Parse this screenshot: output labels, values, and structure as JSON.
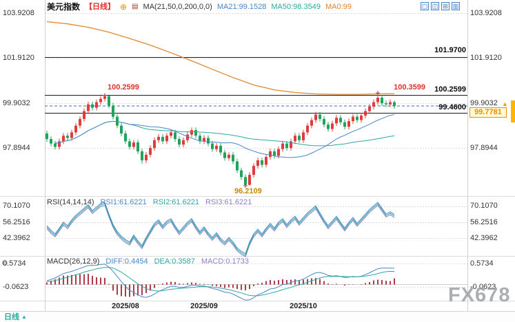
{
  "header": {
    "symbol": "美元指数",
    "period": "【日线】",
    "plus_icon": "⊕",
    "chart_icon": "▤",
    "ma_settings": "MA(21,50,0,200,0,0)",
    "ma21": "MA21:99.1528",
    "ma50": "MA50:98.3549",
    "ma0": "MA0:99"
  },
  "toolbar": {
    "icons": [
      {
        "glyph": "▢"
      },
      {
        "glyph": "◫"
      },
      {
        "glyph": "⊞"
      },
      {
        "glyph": "▥"
      }
    ]
  },
  "axes": {
    "price_left": [
      "103.9208",
      "101.9120",
      "99.9032",
      "97.8944"
    ],
    "price_right": [
      "103.9208",
      "101.9120",
      "99.9032",
      "97.8944"
    ],
    "rsi_ticks": [
      "70.1070",
      "56.2516",
      "42.3962"
    ],
    "macd_ticks": [
      "0.5734",
      "-0.0623"
    ],
    "time": [
      "2025/08",
      "2025/09",
      "2025/10"
    ]
  },
  "levels": {
    "line1": "101.9700",
    "line2": "100.2599",
    "line3": "99.4600",
    "swing_high": "100.2599",
    "recent_high": "100.3599",
    "swing_low": "96.2109",
    "last_price": "99.7781"
  },
  "rsi_header": {
    "title": "RSI(14,14,14)",
    "rsi1": "RSI1:61.6221",
    "rsi2": "RSI2:61.6221",
    "rsi3": "RSI3:61.6221"
  },
  "macd_header": {
    "title": "MACD(26,12,9)",
    "diff": "DIFF:0.4454",
    "dea": "DEA:0.3587",
    "macd": "MACD:0.1733"
  },
  "bottom": {
    "tab": "日线",
    "arrow": "▲"
  },
  "watermark": "FX678",
  "gear_icon": "⚙",
  "up_arrow": "▲",
  "colors": {
    "up": "#e13c3c",
    "down": "#22a35c",
    "ma21": "#4a86c8",
    "ma50": "#2ba8a0",
    "ma200": "#e0862e",
    "rsi": "#2ba8a0",
    "diff": "#4a86c8",
    "dea": "#2ba8a0",
    "hist": "#b03a4a",
    "dashed": "#3b6db0",
    "level": "#1a1a1a",
    "highlight": "#f08c00"
  },
  "chart_data": [
    {
      "type": "candlestick",
      "name": "美元指数 日线",
      "ylim": [
        95.9,
        104.3
      ],
      "y_ticks": [
        103.9208,
        101.912,
        99.9032,
        97.8944
      ],
      "h_lines": [
        101.97,
        100.2599,
        99.46
      ],
      "dashed_line": 99.7781,
      "x_labels": [
        {
          "index": 19,
          "label": "2025/08"
        },
        {
          "index": 38,
          "label": "2025/09"
        },
        {
          "index": 62,
          "label": "2025/10"
        }
      ],
      "annotations": [
        {
          "index": 14,
          "price": 100.2599,
          "label": "100.2599"
        },
        {
          "index": 80,
          "price": 100.3599,
          "label": "100.3599"
        },
        {
          "index": 48,
          "price": 96.2109,
          "label": "96.2109"
        }
      ],
      "ma200": [
        [
          0,
          103.55
        ],
        [
          5,
          103.45
        ],
        [
          10,
          103.3
        ],
        [
          15,
          103.08
        ],
        [
          20,
          102.8
        ],
        [
          25,
          102.5
        ],
        [
          30,
          102.16
        ],
        [
          35,
          101.8
        ],
        [
          40,
          101.42
        ],
        [
          45,
          101.05
        ],
        [
          50,
          100.72
        ],
        [
          55,
          100.5
        ],
        [
          60,
          100.38
        ],
        [
          65,
          100.32
        ],
        [
          70,
          100.3
        ],
        [
          75,
          100.3
        ],
        [
          80,
          100.32
        ],
        [
          84,
          100.33
        ]
      ],
      "candles": [
        [
          98.55,
          98.67,
          98.18,
          98.3
        ],
        [
          98.3,
          98.42,
          97.98,
          98.1
        ],
        [
          98.1,
          98.22,
          97.83,
          97.95
        ],
        [
          97.95,
          98.32,
          97.83,
          98.2
        ],
        [
          98.2,
          98.57,
          98.08,
          98.45
        ],
        [
          98.45,
          98.57,
          98.23,
          98.35
        ],
        [
          98.35,
          98.72,
          98.23,
          98.6
        ],
        [
          98.6,
          99.02,
          98.48,
          98.9
        ],
        [
          98.9,
          99.32,
          98.78,
          99.2
        ],
        [
          99.2,
          99.67,
          99.08,
          99.55
        ],
        [
          99.55,
          99.97,
          99.43,
          99.85
        ],
        [
          99.85,
          99.97,
          99.58,
          99.7
        ],
        [
          99.7,
          100.07,
          99.58,
          99.95
        ],
        [
          99.95,
          100.22,
          99.83,
          100.1
        ],
        [
          100.1,
          100.26,
          99.98,
          100.22
        ],
        [
          100.22,
          100.24,
          99.68,
          99.8
        ],
        [
          99.8,
          99.92,
          99.18,
          99.3
        ],
        [
          99.3,
          99.42,
          98.78,
          98.9
        ],
        [
          98.9,
          99.02,
          98.43,
          98.55
        ],
        [
          98.55,
          98.67,
          98.08,
          98.2
        ],
        [
          98.2,
          98.32,
          97.83,
          97.95
        ],
        [
          97.95,
          98.27,
          97.83,
          98.15
        ],
        [
          98.15,
          98.27,
          97.63,
          97.75
        ],
        [
          97.75,
          97.87,
          97.2,
          97.35
        ],
        [
          97.35,
          97.72,
          97.23,
          97.6
        ],
        [
          97.6,
          98.02,
          97.48,
          97.9
        ],
        [
          97.9,
          98.37,
          97.78,
          98.25
        ],
        [
          98.25,
          98.52,
          98.13,
          98.4
        ],
        [
          98.4,
          98.52,
          98.08,
          98.2
        ],
        [
          98.2,
          98.57,
          98.08,
          98.45
        ],
        [
          98.45,
          98.72,
          98.33,
          98.6
        ],
        [
          98.6,
          98.72,
          98.18,
          98.3
        ],
        [
          98.3,
          98.42,
          97.93,
          98.05
        ],
        [
          98.05,
          98.37,
          97.93,
          98.25
        ],
        [
          98.25,
          98.62,
          98.13,
          98.5
        ],
        [
          98.5,
          98.82,
          98.38,
          98.7
        ],
        [
          98.7,
          98.82,
          98.33,
          98.45
        ],
        [
          98.45,
          98.57,
          98.08,
          98.2
        ],
        [
          98.2,
          98.47,
          98.08,
          98.35
        ],
        [
          98.35,
          98.47,
          97.98,
          98.1
        ],
        [
          98.1,
          98.22,
          97.73,
          97.85
        ],
        [
          97.85,
          98.12,
          97.73,
          98.0
        ],
        [
          98.0,
          98.12,
          97.58,
          97.7
        ],
        [
          97.7,
          97.82,
          97.33,
          97.45
        ],
        [
          97.45,
          97.72,
          97.33,
          97.6
        ],
        [
          97.6,
          97.72,
          97.18,
          97.3
        ],
        [
          97.3,
          97.42,
          96.78,
          96.9
        ],
        [
          96.9,
          97.02,
          96.48,
          96.6
        ],
        [
          96.6,
          96.72,
          96.21,
          96.25
        ],
        [
          96.25,
          96.82,
          96.22,
          96.7
        ],
        [
          96.7,
          97.22,
          96.58,
          97.1
        ],
        [
          97.1,
          97.47,
          96.98,
          97.35
        ],
        [
          97.35,
          97.47,
          97.03,
          97.15
        ],
        [
          97.15,
          97.62,
          97.03,
          97.5
        ],
        [
          97.5,
          97.87,
          97.38,
          97.75
        ],
        [
          97.75,
          97.87,
          97.43,
          97.55
        ],
        [
          97.55,
          97.97,
          97.43,
          97.85
        ],
        [
          97.85,
          98.22,
          97.73,
          98.1
        ],
        [
          98.1,
          98.22,
          97.78,
          97.9
        ],
        [
          97.9,
          98.32,
          97.78,
          98.2
        ],
        [
          98.2,
          98.57,
          98.08,
          98.45
        ],
        [
          98.45,
          98.57,
          98.13,
          98.25
        ],
        [
          98.25,
          98.72,
          98.13,
          98.6
        ],
        [
          98.6,
          99.02,
          98.48,
          98.9
        ],
        [
          98.9,
          99.27,
          98.78,
          99.15
        ],
        [
          99.15,
          99.52,
          99.03,
          99.4
        ],
        [
          99.4,
          99.52,
          99.08,
          99.2
        ],
        [
          99.2,
          99.32,
          98.83,
          98.95
        ],
        [
          98.95,
          99.07,
          98.63,
          98.75
        ],
        [
          98.75,
          99.12,
          98.63,
          99.0
        ],
        [
          99.0,
          99.37,
          98.88,
          99.25
        ],
        [
          99.25,
          99.37,
          98.93,
          99.05
        ],
        [
          99.05,
          99.17,
          98.73,
          98.85
        ],
        [
          98.85,
          99.22,
          98.73,
          99.1
        ],
        [
          99.1,
          99.42,
          98.98,
          99.3
        ],
        [
          99.3,
          99.42,
          99.03,
          99.15
        ],
        [
          99.15,
          99.47,
          99.03,
          99.35
        ],
        [
          99.35,
          99.67,
          99.23,
          99.55
        ],
        [
          99.55,
          99.87,
          99.43,
          99.75
        ],
        [
          99.75,
          100.07,
          99.63,
          99.95
        ],
        [
          99.95,
          100.36,
          99.83,
          100.15
        ],
        [
          100.15,
          100.27,
          99.78,
          99.9
        ],
        [
          99.9,
          100.02,
          99.73,
          99.85
        ],
        [
          99.85,
          100.07,
          99.73,
          99.95
        ],
        [
          99.95,
          100.02,
          99.66,
          99.78
        ]
      ]
    },
    {
      "type": "line",
      "name": "RSI(14,14,14)",
      "ylim": [
        20,
        85
      ],
      "y_ticks": [
        70.107,
        56.2516,
        42.3962
      ],
      "values": [
        52,
        48,
        45,
        50,
        55,
        52,
        57,
        61,
        64,
        67,
        70,
        65,
        68,
        71,
        72,
        62,
        53,
        47,
        43,
        40,
        38,
        44,
        39,
        35,
        42,
        48,
        54,
        57,
        52,
        56,
        58,
        52,
        47,
        51,
        55,
        58,
        52,
        47,
        51,
        46,
        42,
        46,
        41,
        38,
        42,
        38,
        33,
        30,
        28,
        38,
        45,
        49,
        45,
        50,
        54,
        50,
        55,
        58,
        53,
        57,
        60,
        55,
        59,
        63,
        66,
        69,
        63,
        57,
        52,
        56,
        60,
        55,
        50,
        55,
        59,
        54,
        58,
        62,
        66,
        69,
        72,
        67,
        62,
        64,
        61.62
      ]
    },
    {
      "type": "macd",
      "name": "MACD(26,12,9)",
      "ylim": [
        -0.5,
        0.75
      ],
      "y_ticks": [
        0.5734,
        -0.0623
      ],
      "diff": [
        0.1,
        0.14,
        0.18,
        0.24,
        0.3,
        0.33,
        0.36,
        0.4,
        0.44,
        0.48,
        0.52,
        0.52,
        0.53,
        0.55,
        0.56,
        0.48,
        0.36,
        0.22,
        0.08,
        -0.05,
        -0.16,
        -0.22,
        -0.28,
        -0.34,
        -0.35,
        -0.32,
        -0.26,
        -0.19,
        -0.14,
        -0.09,
        -0.05,
        -0.05,
        -0.08,
        -0.08,
        -0.05,
        -0.02,
        -0.02,
        -0.04,
        -0.04,
        -0.07,
        -0.11,
        -0.13,
        -0.17,
        -0.21,
        -0.22,
        -0.26,
        -0.32,
        -0.38,
        -0.43,
        -0.42,
        -0.36,
        -0.28,
        -0.24,
        -0.18,
        -0.12,
        -0.11,
        -0.06,
        0.0,
        0.01,
        0.05,
        0.1,
        0.11,
        0.15,
        0.21,
        0.27,
        0.32,
        0.33,
        0.3,
        0.25,
        0.23,
        0.24,
        0.22,
        0.19,
        0.2,
        0.22,
        0.21,
        0.23,
        0.27,
        0.32,
        0.38,
        0.43,
        0.45,
        0.45,
        0.45,
        0.4454
      ],
      "dea": [
        0.08,
        0.09,
        0.11,
        0.14,
        0.17,
        0.2,
        0.23,
        0.27,
        0.3,
        0.34,
        0.37,
        0.4,
        0.43,
        0.45,
        0.47,
        0.47,
        0.45,
        0.4,
        0.34,
        0.26,
        0.18,
        0.1,
        0.02,
        -0.05,
        -0.11,
        -0.15,
        -0.17,
        -0.18,
        -0.17,
        -0.15,
        -0.13,
        -0.12,
        -0.11,
        -0.1,
        -0.09,
        -0.08,
        -0.07,
        -0.06,
        -0.06,
        -0.06,
        -0.07,
        -0.08,
        -0.1,
        -0.12,
        -0.14,
        -0.17,
        -0.2,
        -0.23,
        -0.27,
        -0.3,
        -0.31,
        -0.31,
        -0.29,
        -0.27,
        -0.24,
        -0.21,
        -0.18,
        -0.14,
        -0.11,
        -0.08,
        -0.04,
        -0.01,
        0.02,
        0.06,
        0.1,
        0.14,
        0.18,
        0.21,
        0.22,
        0.22,
        0.22,
        0.22,
        0.22,
        0.21,
        0.21,
        0.21,
        0.22,
        0.23,
        0.25,
        0.27,
        0.3,
        0.33,
        0.35,
        0.36,
        0.3587
      ],
      "hist": [
        0.06,
        0.1,
        0.14,
        0.19,
        0.25,
        0.25,
        0.26,
        0.27,
        0.28,
        0.28,
        0.29,
        0.24,
        0.2,
        0.19,
        0.18,
        0.02,
        -0.17,
        -0.28,
        -0.32,
        -0.33,
        -0.34,
        -0.32,
        -0.3,
        -0.29,
        -0.24,
        -0.17,
        -0.09,
        -0.01,
        0.03,
        0.06,
        0.08,
        0.07,
        0.03,
        0.02,
        0.04,
        0.06,
        0.05,
        0.02,
        0.02,
        -0.01,
        -0.04,
        -0.05,
        -0.07,
        -0.09,
        -0.08,
        -0.09,
        -0.12,
        -0.15,
        -0.16,
        -0.12,
        -0.05,
        0.03,
        0.05,
        0.09,
        0.12,
        0.1,
        0.12,
        0.14,
        0.12,
        0.13,
        0.14,
        0.12,
        0.13,
        0.15,
        0.17,
        0.18,
        0.15,
        0.09,
        0.03,
        0.01,
        0.02,
        0.0,
        -0.03,
        -0.01,
        0.01,
        0.0,
        0.01,
        0.04,
        0.07,
        0.11,
        0.13,
        0.12,
        0.1,
        0.09,
        0.17
      ]
    }
  ]
}
